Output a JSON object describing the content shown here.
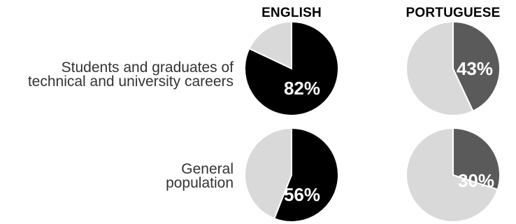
{
  "chart_data": {
    "type": "pie",
    "columns": [
      "ENGLISH",
      "PORTUGUESE"
    ],
    "rows": [
      {
        "label_line1": "Students and graduates of",
        "label_line2": "technical and university careers",
        "values": [
          {
            "language": "ENGLISH",
            "percent": 82,
            "label": "82%"
          },
          {
            "language": "PORTUGUESE",
            "percent": 43,
            "label": "43%"
          }
        ]
      },
      {
        "label_line1": "General",
        "label_line2": "population",
        "values": [
          {
            "language": "ENGLISH",
            "percent": 56,
            "label": "56%"
          },
          {
            "language": "PORTUGUESE",
            "percent": 30,
            "label": "30%"
          }
        ]
      }
    ],
    "colors": {
      "ENGLISH": "#000000",
      "PORTUGUESE": "#5a5a5a",
      "remainder": "#d9d9d9"
    }
  }
}
